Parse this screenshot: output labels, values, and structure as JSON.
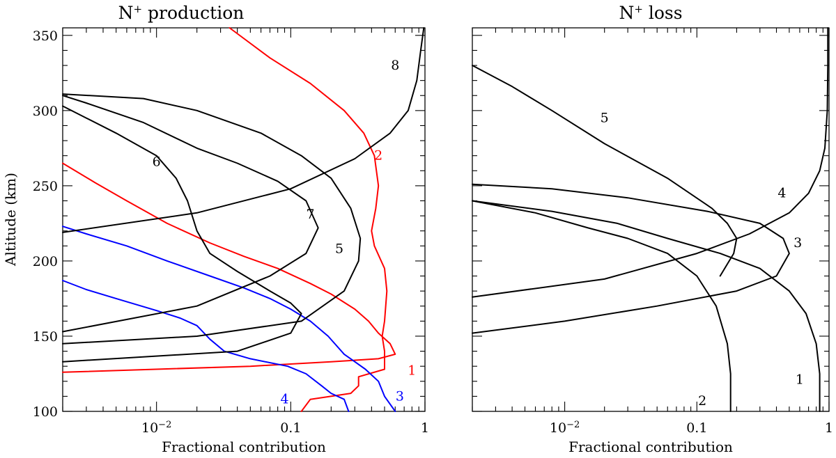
{
  "colors": {
    "black": "#000000",
    "red": "#ff0000",
    "blue": "#0000ff"
  },
  "chart_data": [
    {
      "type": "line",
      "title_main": "N",
      "title_sup": "+",
      "title_rest": " production",
      "xlabel": "Fractional contribution",
      "ylabel": "Altitude (km)",
      "xscale": "log",
      "xlim": [
        0.002,
        1
      ],
      "ylim": [
        100,
        355
      ],
      "xticks": [
        {
          "v": 0.01,
          "base": "10",
          "exp": "−2"
        },
        {
          "v": 0.1,
          "label": "0.1"
        },
        {
          "v": 1,
          "label": "1"
        }
      ],
      "yticks": [
        100,
        150,
        200,
        250,
        300,
        350
      ],
      "series": [
        {
          "name": "1",
          "color": "#ff0000",
          "label_pos": [
            0.8,
            127
          ],
          "points": [
            [
              0.002,
              126
            ],
            [
              0.05,
              130
            ],
            [
              0.2,
              133
            ],
            [
              0.45,
              135
            ],
            [
              0.6,
              138
            ],
            [
              0.55,
              145
            ],
            [
              0.45,
              152
            ],
            [
              0.38,
              160
            ],
            [
              0.3,
              168
            ],
            [
              0.2,
              178
            ],
            [
              0.14,
              185
            ],
            [
              0.08,
              195
            ],
            [
              0.045,
              203
            ],
            [
              0.025,
              212
            ],
            [
              0.012,
              225
            ],
            [
              0.006,
              240
            ],
            [
              0.0035,
              252
            ],
            [
              0.002,
              265
            ]
          ]
        },
        {
          "name": "2",
          "color": "#ff0000",
          "label_pos": [
            0.45,
            270
          ],
          "points": [
            [
              0.12,
              100
            ],
            [
              0.14,
              108
            ],
            [
              0.28,
              112
            ],
            [
              0.32,
              117
            ],
            [
              0.32,
              123
            ],
            [
              0.5,
              128
            ],
            [
              0.5,
              140
            ],
            [
              0.48,
              150
            ],
            [
              0.5,
              160
            ],
            [
              0.52,
              180
            ],
            [
              0.5,
              195
            ],
            [
              0.42,
              210
            ],
            [
              0.4,
              220
            ],
            [
              0.43,
              235
            ],
            [
              0.45,
              250
            ],
            [
              0.42,
              270
            ],
            [
              0.35,
              285
            ],
            [
              0.25,
              300
            ],
            [
              0.14,
              318
            ],
            [
              0.07,
              335
            ],
            [
              0.035,
              355
            ]
          ]
        },
        {
          "name": "3",
          "color": "#0000ff",
          "label_pos": [
            0.65,
            110
          ],
          "points": [
            [
              0.6,
              100
            ],
            [
              0.5,
              110
            ],
            [
              0.45,
              120
            ],
            [
              0.36,
              128
            ],
            [
              0.3,
              133
            ],
            [
              0.25,
              138
            ],
            [
              0.19,
              150
            ],
            [
              0.14,
              160
            ],
            [
              0.1,
              168
            ],
            [
              0.07,
              175
            ],
            [
              0.045,
              182
            ],
            [
              0.025,
              190
            ],
            [
              0.012,
              200
            ],
            [
              0.006,
              210
            ],
            [
              0.003,
              218
            ],
            [
              0.002,
              223
            ]
          ]
        },
        {
          "name": "4",
          "color": "#0000ff",
          "label_pos": [
            0.09,
            108
          ],
          "points": [
            [
              0.27,
              100
            ],
            [
              0.25,
              108
            ],
            [
              0.2,
              112
            ],
            [
              0.17,
              117
            ],
            [
              0.13,
              125
            ],
            [
              0.095,
              130
            ],
            [
              0.05,
              135
            ],
            [
              0.032,
              140
            ],
            [
              0.025,
              148
            ],
            [
              0.02,
              157
            ],
            [
              0.015,
              162
            ],
            [
              0.01,
              167
            ],
            [
              0.005,
              175
            ],
            [
              0.003,
              181
            ],
            [
              0.002,
              187
            ]
          ]
        },
        {
          "name": "5",
          "color": "#000000",
          "label_pos": [
            0.23,
            208
          ],
          "points": [
            [
              0.002,
              145
            ],
            [
              0.02,
              150
            ],
            [
              0.12,
              160
            ],
            [
              0.25,
              180
            ],
            [
              0.32,
              200
            ],
            [
              0.33,
              215
            ],
            [
              0.28,
              235
            ],
            [
              0.2,
              255
            ],
            [
              0.12,
              270
            ],
            [
              0.06,
              285
            ],
            [
              0.02,
              300
            ],
            [
              0.008,
              308
            ],
            [
              0.002,
              311
            ]
          ]
        },
        {
          "name": "6",
          "color": "#000000",
          "label_pos": [
            0.01,
            266
          ],
          "points": [
            [
              0.002,
              133
            ],
            [
              0.04,
              140
            ],
            [
              0.1,
              152
            ],
            [
              0.12,
              165
            ],
            [
              0.1,
              172
            ],
            [
              0.07,
              180
            ],
            [
              0.04,
              193
            ],
            [
              0.025,
              205
            ],
            [
              0.02,
              220
            ],
            [
              0.017,
              240
            ],
            [
              0.014,
              255
            ],
            [
              0.01,
              270
            ],
            [
              0.005,
              285
            ],
            [
              0.003,
              295
            ],
            [
              0.002,
              303
            ]
          ]
        },
        {
          "name": "7",
          "color": "#000000",
          "label_pos": [
            0.14,
            231
          ],
          "points": [
            [
              0.002,
              153
            ],
            [
              0.02,
              170
            ],
            [
              0.07,
              190
            ],
            [
              0.13,
              205
            ],
            [
              0.16,
              222
            ],
            [
              0.13,
              240
            ],
            [
              0.08,
              253
            ],
            [
              0.04,
              265
            ],
            [
              0.02,
              275
            ],
            [
              0.008,
              292
            ],
            [
              0.003,
              305
            ],
            [
              0.002,
              310
            ]
          ]
        },
        {
          "name": "8",
          "color": "#000000",
          "label_pos": [
            0.6,
            330
          ],
          "points": [
            [
              0.002,
              219
            ],
            [
              0.02,
              232
            ],
            [
              0.1,
              248
            ],
            [
              0.3,
              268
            ],
            [
              0.55,
              285
            ],
            [
              0.75,
              300
            ],
            [
              0.87,
              320
            ],
            [
              0.93,
              340
            ],
            [
              0.98,
              355
            ]
          ]
        }
      ]
    },
    {
      "type": "line",
      "title_main": "N",
      "title_sup": "+",
      "title_rest": " loss",
      "xlabel": "Fractional contribution",
      "ylabel": "",
      "xscale": "log",
      "xlim": [
        0.002,
        1
      ],
      "ylim": [
        100,
        355
      ],
      "xticks": [
        {
          "v": 0.01,
          "base": "10",
          "exp": "−2"
        },
        {
          "v": 0.1,
          "label": "0.1"
        },
        {
          "v": 1,
          "label": "1"
        }
      ],
      "yticks": [
        100,
        150,
        200,
        250,
        300,
        350
      ],
      "series": [
        {
          "name": "1",
          "color": "#000000",
          "label_pos": [
            0.6,
            121
          ],
          "points": [
            [
              0.85,
              100
            ],
            [
              0.85,
              125
            ],
            [
              0.8,
              145
            ],
            [
              0.67,
              165
            ],
            [
              0.5,
              180
            ],
            [
              0.3,
              195
            ],
            [
              0.15,
              205
            ],
            [
              0.06,
              215
            ],
            [
              0.025,
              225
            ],
            [
              0.008,
              233
            ],
            [
              0.002,
              240
            ]
          ]
        },
        {
          "name": "2",
          "color": "#000000",
          "label_pos": [
            0.11,
            107
          ],
          "points": [
            [
              0.18,
              100
            ],
            [
              0.18,
              125
            ],
            [
              0.17,
              145
            ],
            [
              0.14,
              170
            ],
            [
              0.1,
              190
            ],
            [
              0.06,
              205
            ],
            [
              0.03,
              215
            ],
            [
              0.015,
              222
            ],
            [
              0.006,
              232
            ],
            [
              0.002,
              240
            ]
          ]
        },
        {
          "name": "3",
          "color": "#000000",
          "label_pos": [
            0.58,
            212
          ],
          "points": [
            [
              0.002,
              152
            ],
            [
              0.01,
              160
            ],
            [
              0.05,
              170
            ],
            [
              0.2,
              180
            ],
            [
              0.4,
              190
            ],
            [
              0.5,
              205
            ],
            [
              0.45,
              215
            ],
            [
              0.3,
              225
            ],
            [
              0.12,
              233
            ],
            [
              0.03,
              242
            ],
            [
              0.008,
              248
            ],
            [
              0.002,
              251
            ]
          ]
        },
        {
          "name": "4",
          "color": "#000000",
          "label_pos": [
            0.44,
            245
          ],
          "points": [
            [
              0.002,
              176
            ],
            [
              0.02,
              188
            ],
            [
              0.1,
              205
            ],
            [
              0.25,
              218
            ],
            [
              0.5,
              232
            ],
            [
              0.7,
              245
            ],
            [
              0.85,
              260
            ],
            [
              0.93,
              275
            ],
            [
              0.97,
              300
            ],
            [
              0.98,
              330
            ],
            [
              0.98,
              355
            ]
          ]
        },
        {
          "name": "5",
          "color": "#000000",
          "label_pos": [
            0.02,
            295
          ],
          "points": [
            [
              0.15,
              190
            ],
            [
              0.19,
              205
            ],
            [
              0.2,
              215
            ],
            [
              0.17,
              225
            ],
            [
              0.13,
              235
            ],
            [
              0.06,
              255
            ],
            [
              0.02,
              278
            ],
            [
              0.008,
              300
            ],
            [
              0.004,
              316
            ],
            [
              0.002,
              330
            ]
          ]
        }
      ]
    }
  ]
}
